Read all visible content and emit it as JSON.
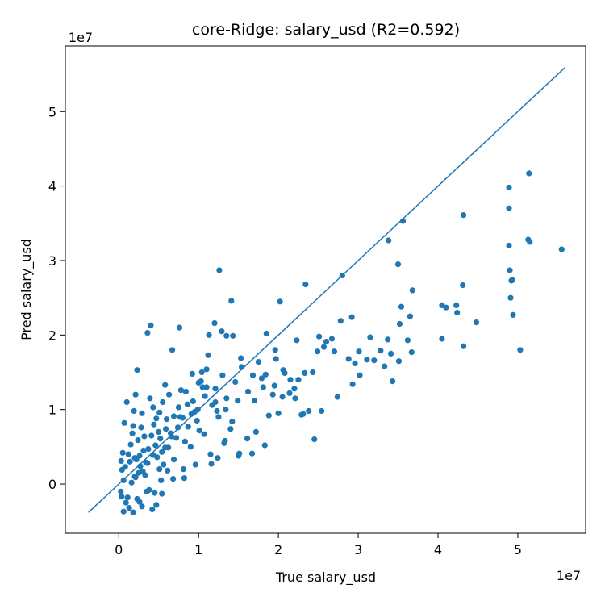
{
  "chart_data": {
    "type": "scatter",
    "title": "core-Ridge: salary_usd (R2=0.592)",
    "xlabel": "True salary_usd",
    "ylabel": "Pred salary_usd",
    "x_offset_label": "1e7",
    "y_offset_label": "1e7",
    "xlim": [
      -6700000,
      58500000
    ],
    "ylim": [
      -6600000,
      58800000
    ],
    "xticks": [
      0,
      10000000,
      20000000,
      30000000,
      40000000,
      50000000
    ],
    "xtick_labels": [
      "0",
      "1",
      "2",
      "3",
      "4",
      "5"
    ],
    "yticks": [
      0,
      10000000,
      20000000,
      30000000,
      40000000,
      50000000
    ],
    "ytick_labels": [
      "0",
      "1",
      "2",
      "3",
      "4",
      "5"
    ],
    "grid": false,
    "legend": "none",
    "point_color": "#1f77b4",
    "reference_line": {
      "x": [
        -3800000,
        55900000
      ],
      "y": [
        -3800000,
        55900000
      ],
      "color": "#1f77b4"
    },
    "points": {
      "x": [
        28000000,
        35000000,
        36800000,
        40500000,
        41000000,
        42300000,
        42400000,
        43100000,
        43200000,
        44800000,
        48900000,
        48900000,
        48900000,
        49100000,
        49200000,
        49300000,
        50300000,
        51300000,
        51400000,
        55500000,
        40500000,
        43200000,
        49000000,
        49400000,
        51500000,
        33800000,
        35600000,
        34300000,
        36500000,
        36700000,
        35200000,
        33700000,
        32000000,
        29600000,
        30200000,
        29200000,
        27800000,
        26700000,
        25100000,
        24500000,
        23400000,
        22100000,
        22300000,
        23300000,
        21500000,
        20500000,
        20200000,
        19600000,
        19300000,
        18500000,
        17500000,
        18100000,
        16800000,
        15300000,
        14900000,
        14100000,
        13400000,
        12600000,
        12300000,
        12000000,
        11300000,
        11000000,
        10500000,
        10100000,
        9800000,
        9200000,
        8400000,
        7800000,
        7600000,
        6700000,
        6300000,
        6000000,
        5800000,
        5500000,
        5100000,
        5000000,
        4700000,
        4300000,
        4000000,
        3600000,
        3100000,
        2800000,
        2600000,
        2500000,
        2300000,
        2100000,
        1900000,
        1700000,
        1400000,
        1000000,
        700000,
        500000,
        400000,
        300000,
        600000,
        800000,
        1200000,
        1500000,
        1800000,
        2000000,
        2200000,
        2400000,
        2700000,
        2900000,
        3200000,
        3400000,
        3700000,
        3900000,
        4100000,
        4400000,
        4600000,
        4800000,
        5200000,
        5400000,
        5600000,
        5900000,
        6200000,
        6500000,
        6900000,
        7200000,
        7500000,
        8000000,
        8300000,
        8700000,
        9100000,
        9500000,
        10000000,
        10400000,
        10800000,
        11200000,
        11700000,
        12100000,
        12500000,
        13000000,
        13500000,
        14000000,
        14600000,
        15400000,
        16200000,
        17000000,
        17900000,
        18800000,
        19700000,
        20600000,
        21400000,
        22500000,
        23800000,
        24900000,
        26000000,
        27400000,
        28800000,
        30100000,
        31500000,
        32800000,
        34100000,
        35400000,
        36200000,
        2000000,
        3300000,
        4500000,
        1100000,
        2600000,
        3800000,
        5300000,
        6800000,
        8100000,
        9600000,
        11500000,
        13200000,
        15000000,
        16700000,
        18300000,
        20000000,
        22900000,
        25400000,
        12900000,
        13500000,
        14300000,
        12100000,
        11000000,
        10300000,
        9300000,
        8600000,
        7700000,
        6900000,
        6100000,
        5400000,
        4700000,
        4200000,
        3500000,
        2900000,
        2300000,
        1800000,
        1300000,
        900000,
        600000,
        350000,
        250000,
        1600000,
        2100000,
        3000000,
        3600000,
        4300000,
        5100000,
        5800000,
        6600000,
        7400000,
        8200000,
        9000000,
        9900000,
        10700000,
        11600000,
        12400000,
        13300000,
        14200000,
        15100000,
        16100000,
        17200000,
        18400000,
        19500000,
        20800000,
        22000000,
        23100000,
        24300000,
        25700000,
        27000000,
        29300000,
        31100000,
        33300000,
        35100000
      ],
      "y": [
        28000000,
        29500000,
        26000000,
        24000000,
        23700000,
        24000000,
        23000000,
        26700000,
        18500000,
        21700000,
        39800000,
        37000000,
        32000000,
        25000000,
        27300000,
        27400000,
        18000000,
        32800000,
        41700000,
        31500000,
        19500000,
        36100000,
        28700000,
        22700000,
        32500000,
        32700000,
        35300000,
        13800000,
        22500000,
        17700000,
        21500000,
        19400000,
        16600000,
        16200000,
        14600000,
        22400000,
        21900000,
        19500000,
        19800000,
        6000000,
        26800000,
        11500000,
        19300000,
        14900000,
        14000000,
        11700000,
        24500000,
        18000000,
        12000000,
        20200000,
        16400000,
        13000000,
        14600000,
        16900000,
        11200000,
        24600000,
        10000000,
        28700000,
        9800000,
        21600000,
        20000000,
        15400000,
        13000000,
        7200000,
        8500000,
        14800000,
        12400000,
        12600000,
        21000000,
        18000000,
        12000000,
        8700000,
        13300000,
        11000000,
        9600000,
        7000000,
        8800000,
        10300000,
        21300000,
        20300000,
        4500000,
        7600000,
        3800000,
        1500000,
        15300000,
        12000000,
        9800000,
        6800000,
        3000000,
        11000000,
        8200000,
        4200000,
        1900000,
        3100000,
        500000,
        2300000,
        4000000,
        5300000,
        7800000,
        1000000,
        3300000,
        5900000,
        2400000,
        9500000,
        6400000,
        2900000,
        4700000,
        11500000,
        6500000,
        8000000,
        5200000,
        3600000,
        6100000,
        4300000,
        2600000,
        7400000,
        4900000,
        6800000,
        9100000,
        6200000,
        10300000,
        8900000,
        5700000,
        7700000,
        9400000,
        9700000,
        13600000,
        15000000,
        11800000,
        17300000,
        10600000,
        12800000,
        9000000,
        14600000,
        11500000,
        7400000,
        13700000,
        15700000,
        12400000,
        11200000,
        14200000,
        9200000,
        16800000,
        15300000,
        12200000,
        14000000,
        9800000,
        17800000,
        19100000,
        11700000,
        16800000,
        17800000,
        19700000,
        17900000,
        17500000,
        23800000,
        19300000,
        3500000,
        1200000,
        -1200000,
        -1800000,
        -2400000,
        -800000,
        500000,
        700000,
        2000000,
        2600000,
        4000000,
        5500000,
        3800000,
        4100000,
        5200000,
        9500000,
        9300000,
        9800000,
        20500000,
        19900000,
        19900000,
        11000000,
        13000000,
        13800000,
        11100000,
        10700000,
        9000000,
        3300000,
        1800000,
        -1300000,
        -2800000,
        -3400000,
        -1000000,
        -3000000,
        -2000000,
        -3800000,
        -3200000,
        -2500000,
        -3700000,
        -1700000,
        -1000000,
        200000,
        900000,
        1700000,
        2800000,
        3900000,
        2000000,
        4900000,
        6400000,
        7600000,
        800000,
        5000000,
        10000000,
        6700000,
        2700000,
        3500000,
        5800000,
        8400000,
        4100000,
        6100000,
        7000000,
        14700000,
        13200000,
        14900000,
        12800000,
        9400000,
        15000000,
        18400000,
        17800000,
        13400000,
        16700000,
        15800000,
        16500000
      ]
    }
  }
}
